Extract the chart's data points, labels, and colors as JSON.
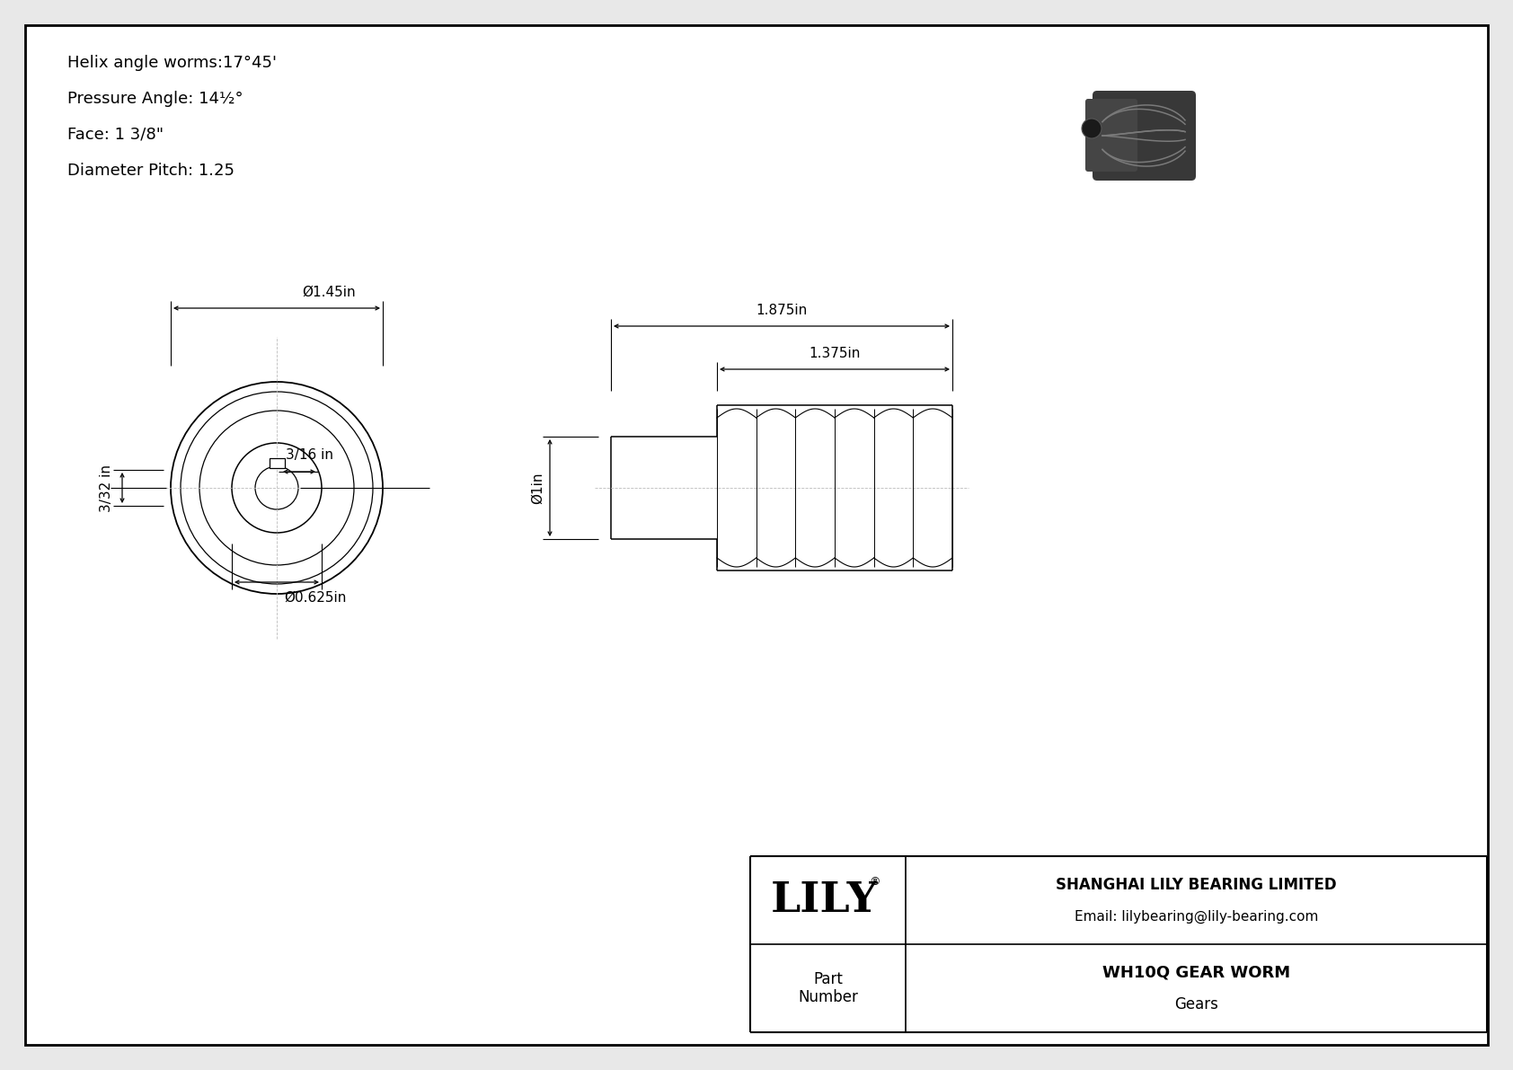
{
  "bg_color": "#e8e8e8",
  "inner_bg": "#f5f5f5",
  "border_color": "#000000",
  "specs": [
    "Helix angle worms:17°45'",
    "Pressure Angle: 14½°",
    "Face: 1 3/8\"",
    "Diameter Pitch: 1.25"
  ],
  "title_company": "SHANGHAI LILY BEARING LIMITED",
  "title_email": "Email: lilybearing@lily-bearing.com",
  "part_label": "Part\nNumber",
  "part_name": "WH10Q GEAR WORM",
  "part_category": "Gears",
  "lily_text": "LILY",
  "dim_outer": "Ø1.45in",
  "dim_keyway": "3/16 in",
  "dim_height": "3/32 in",
  "dim_bore": "Ø0.625in",
  "dim_total_length": "1.875in",
  "dim_worm_length": "1.375in",
  "dim_shaft_dia": "Ø1in",
  "font_size_specs": 13,
  "font_size_dims": 11,
  "font_size_title": 11,
  "font_size_lily": 34
}
